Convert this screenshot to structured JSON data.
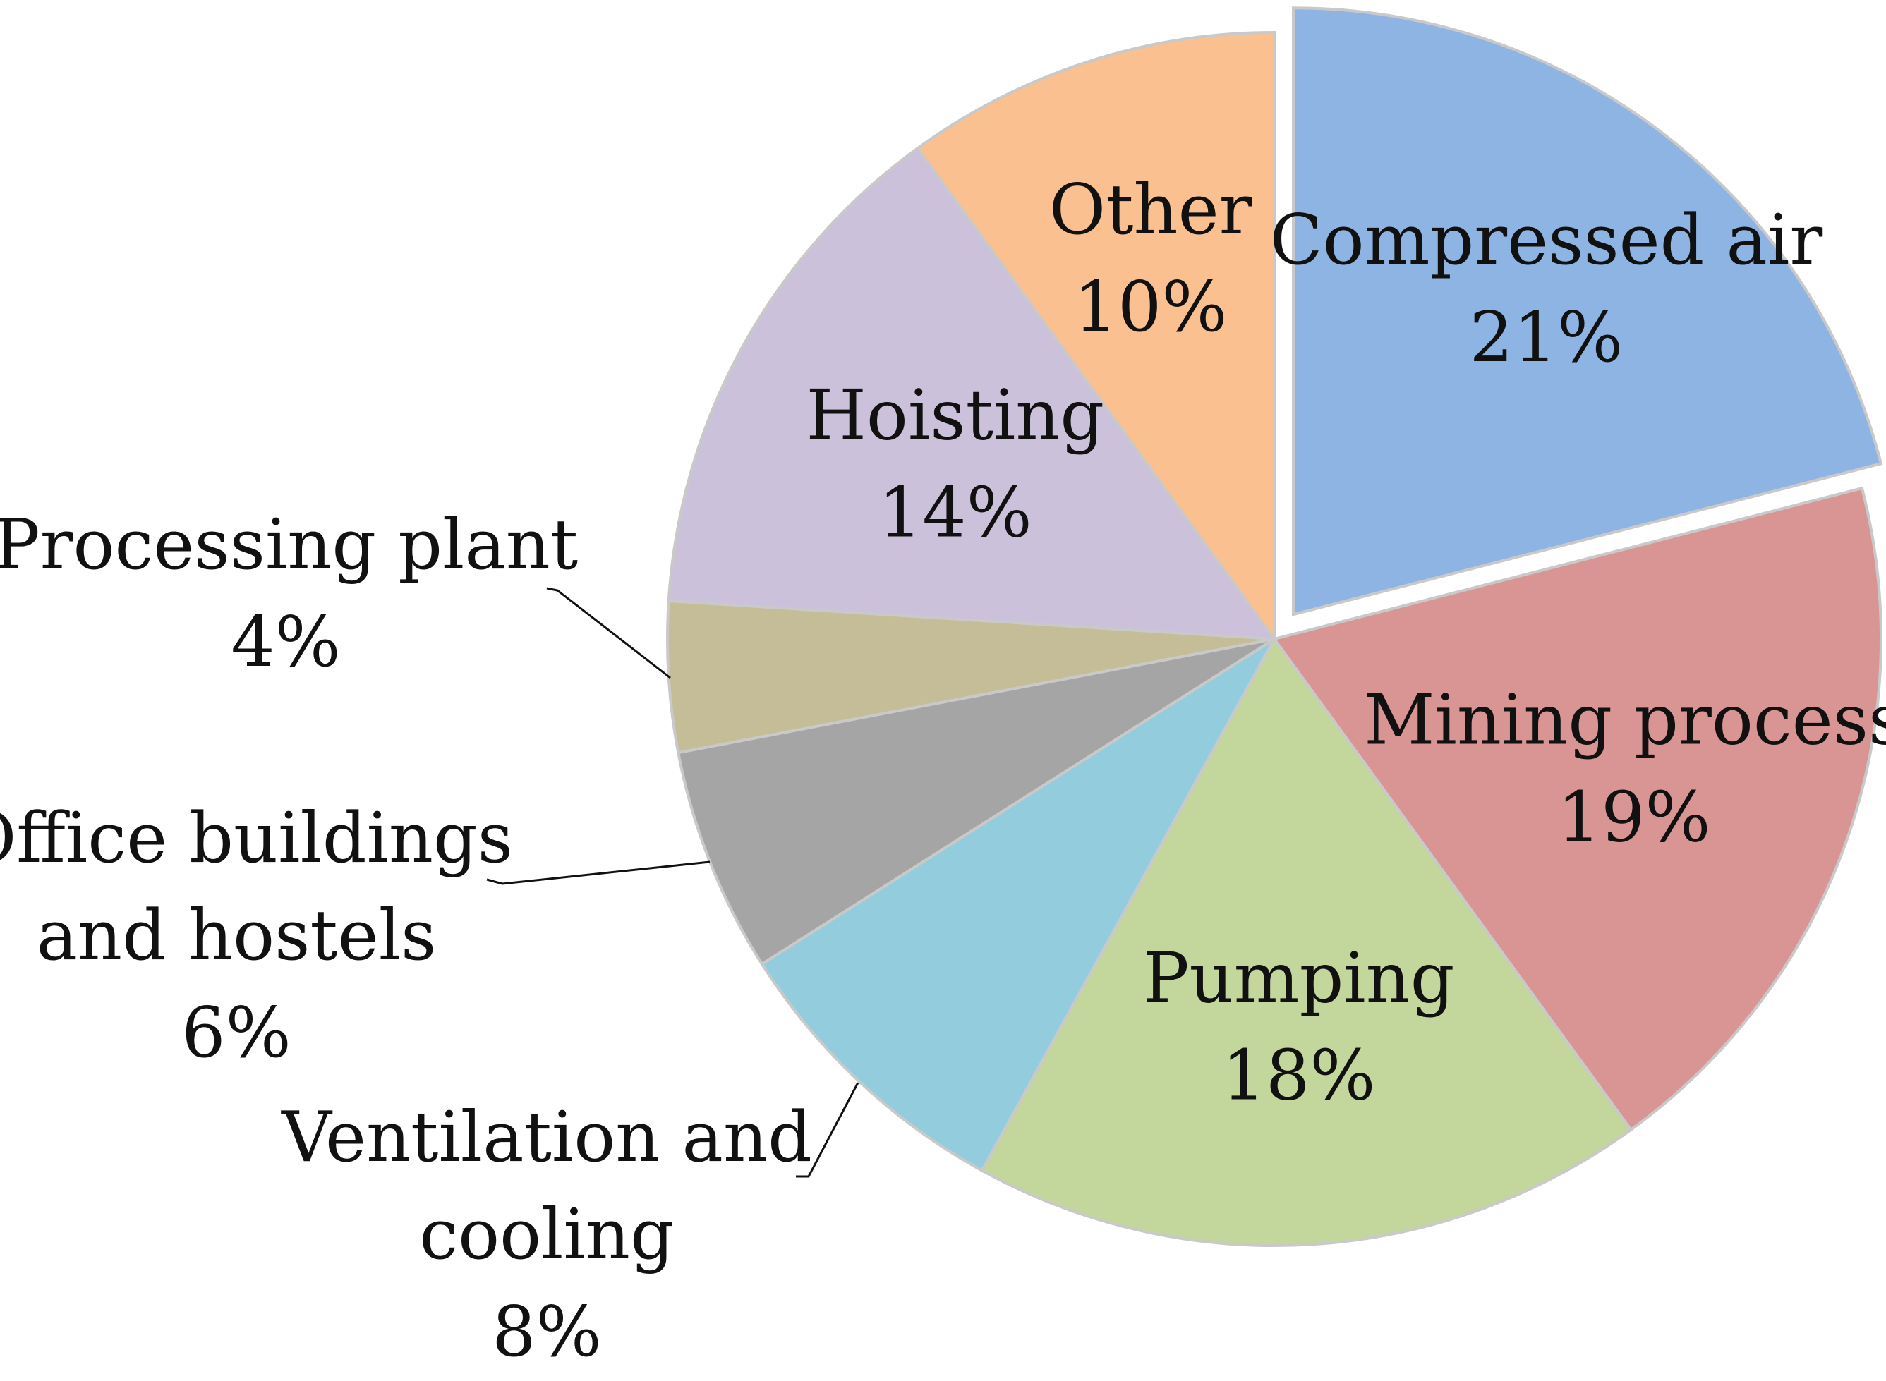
{
  "chart_data": {
    "type": "pie",
    "exploded": [
      "Compressed air"
    ],
    "slices": [
      {
        "label_lines": [
          "Compressed air"
        ],
        "percent_text": "21%",
        "value": 21,
        "color": "#8eb4e3"
      },
      {
        "label_lines": [
          "Mining process"
        ],
        "percent_text": "19%",
        "value": 19,
        "color": "#d99594"
      },
      {
        "label_lines": [
          "Pumping"
        ],
        "percent_text": "18%",
        "value": 18,
        "color": "#c3d69b"
      },
      {
        "label_lines": [
          "Ventilation and",
          "cooling"
        ],
        "percent_text": "8%",
        "value": 8,
        "color": "#93cddd"
      },
      {
        "label_lines": [
          "Office buildings",
          "and hostels"
        ],
        "percent_text": "6%",
        "value": 6,
        "color": "#a5a5a5"
      },
      {
        "label_lines": [
          "Processing plant"
        ],
        "percent_text": "4%",
        "value": 4,
        "color": "#c4bd97"
      },
      {
        "label_lines": [
          "Hoisting"
        ],
        "percent_text": "14%",
        "value": 14,
        "color": "#ccc1da"
      },
      {
        "label_lines": [
          "Other"
        ],
        "percent_text": "10%",
        "value": 10,
        "color": "#fac090"
      }
    ]
  }
}
